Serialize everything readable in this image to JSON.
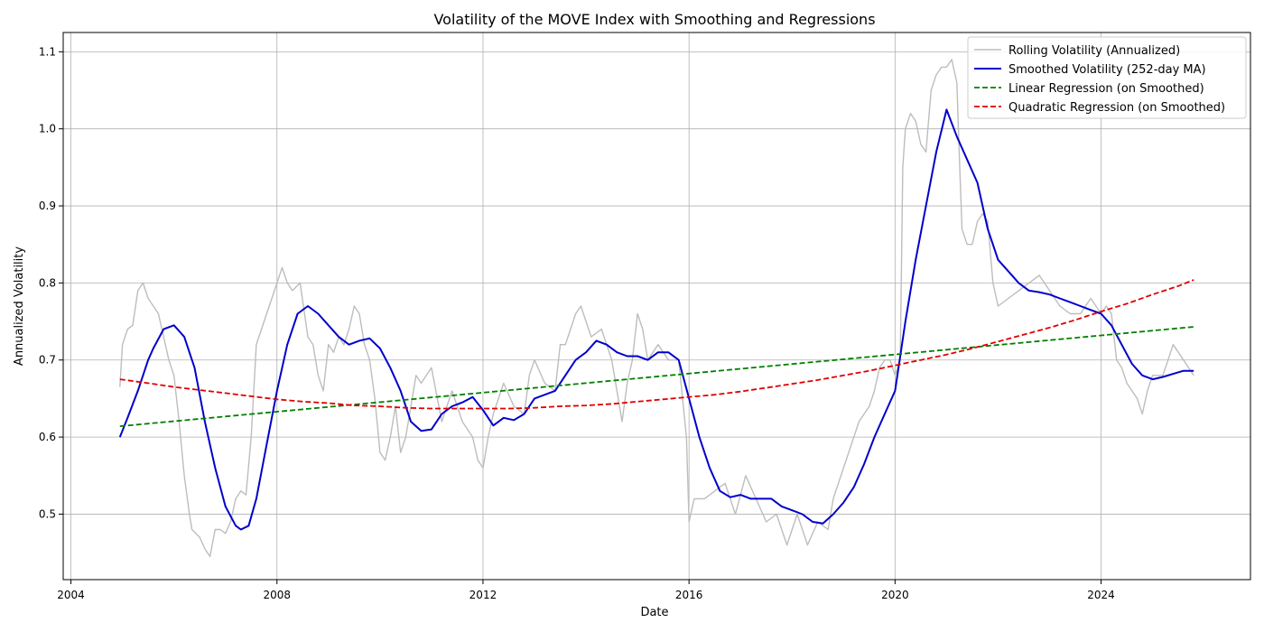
{
  "chart_data": {
    "type": "line",
    "title": "Volatility of the MOVE Index with Smoothing and Regressions",
    "xlabel": "Date",
    "ylabel": "Annualized Volatility",
    "xlim": [
      2003.85,
      2026.9
    ],
    "ylim": [
      0.415,
      1.125
    ],
    "grid": true,
    "legend_position": "top-right",
    "x_ticks": [
      2004,
      2008,
      2012,
      2016,
      2020,
      2024
    ],
    "x_tick_labels": [
      "2004",
      "2008",
      "2012",
      "2016",
      "2020",
      "2024"
    ],
    "y_ticks": [
      0.5,
      0.6,
      0.7,
      0.8,
      0.9,
      1.0,
      1.1
    ],
    "y_tick_labels": [
      "0.5",
      "0.6",
      "0.7",
      "0.8",
      "0.9",
      "1.0",
      "1.1"
    ],
    "series": [
      {
        "name": "Rolling Volatility (Annualized)",
        "color": "#bdbdbd",
        "style": "solid",
        "x": [
          2004.95,
          2005.0,
          2005.1,
          2005.2,
          2005.3,
          2005.4,
          2005.5,
          2005.6,
          2005.7,
          2005.8,
          2005.9,
          2006.0,
          2006.1,
          2006.2,
          2006.3,
          2006.35,
          2006.5,
          2006.6,
          2006.7,
          2006.8,
          2006.9,
          2007.0,
          2007.1,
          2007.2,
          2007.3,
          2007.4,
          2007.5,
          2007.6,
          2007.7,
          2007.8,
          2007.9,
          2008.0,
          2008.1,
          2008.2,
          2008.3,
          2008.45,
          2008.6,
          2008.7,
          2008.8,
          2008.9,
          2009.0,
          2009.1,
          2009.2,
          2009.3,
          2009.4,
          2009.5,
          2009.6,
          2009.7,
          2009.8,
          2009.9,
          2010.0,
          2010.1,
          2010.2,
          2010.3,
          2010.4,
          2010.5,
          2010.6,
          2010.7,
          2010.8,
          2010.9,
          2011.0,
          2011.2,
          2011.4,
          2011.5,
          2011.6,
          2011.8,
          2011.9,
          2012.0,
          2012.1,
          2012.2,
          2012.4,
          2012.6,
          2012.8,
          2012.9,
          2013.0,
          2013.2,
          2013.4,
          2013.5,
          2013.6,
          2013.7,
          2013.8,
          2013.9,
          2014.0,
          2014.1,
          2014.3,
          2014.5,
          2014.6,
          2014.7,
          2014.8,
          2014.9,
          2015.0,
          2015.1,
          2015.2,
          2015.4,
          2015.6,
          2015.8,
          2015.95,
          2016.0,
          2016.1,
          2016.3,
          2016.5,
          2016.7,
          2016.9,
          2017.1,
          2017.3,
          2017.5,
          2017.7,
          2017.9,
          2018.1,
          2018.3,
          2018.5,
          2018.7,
          2018.8,
          2018.9,
          2019.0,
          2019.1,
          2019.2,
          2019.3,
          2019.4,
          2019.5,
          2019.6,
          2019.7,
          2019.8,
          2019.9,
          2020.0,
          2020.1,
          2020.15,
          2020.2,
          2020.3,
          2020.4,
          2020.5,
          2020.6,
          2020.7,
          2020.8,
          2020.9,
          2021.0,
          2021.1,
          2021.2,
          2021.25,
          2021.3,
          2021.4,
          2021.5,
          2021.6,
          2021.7,
          2021.8,
          2021.9,
          2022.0,
          2022.2,
          2022.4,
          2022.6,
          2022.8,
          2023.0,
          2023.2,
          2023.4,
          2023.6,
          2023.8,
          2024.0,
          2024.1,
          2024.2,
          2024.3,
          2024.4,
          2024.5,
          2024.6,
          2024.7,
          2024.8,
          2024.9,
          2025.0,
          2025.2,
          2025.3,
          2025.4,
          2025.5,
          2025.6,
          2025.7,
          2025.8
        ],
        "values": [
          0.665,
          0.72,
          0.74,
          0.745,
          0.79,
          0.8,
          0.78,
          0.77,
          0.76,
          0.73,
          0.7,
          0.68,
          0.62,
          0.55,
          0.5,
          0.48,
          0.47,
          0.455,
          0.445,
          0.48,
          0.48,
          0.475,
          0.49,
          0.52,
          0.53,
          0.525,
          0.6,
          0.72,
          0.74,
          0.76,
          0.78,
          0.8,
          0.82,
          0.8,
          0.79,
          0.8,
          0.73,
          0.72,
          0.68,
          0.66,
          0.72,
          0.71,
          0.73,
          0.72,
          0.74,
          0.77,
          0.76,
          0.72,
          0.7,
          0.65,
          0.58,
          0.57,
          0.6,
          0.64,
          0.58,
          0.6,
          0.64,
          0.68,
          0.67,
          0.68,
          0.69,
          0.62,
          0.66,
          0.64,
          0.62,
          0.6,
          0.57,
          0.56,
          0.6,
          0.63,
          0.67,
          0.64,
          0.63,
          0.68,
          0.7,
          0.67,
          0.66,
          0.72,
          0.72,
          0.74,
          0.76,
          0.77,
          0.75,
          0.73,
          0.74,
          0.7,
          0.66,
          0.62,
          0.67,
          0.7,
          0.76,
          0.74,
          0.7,
          0.72,
          0.7,
          0.7,
          0.6,
          0.49,
          0.52,
          0.52,
          0.53,
          0.54,
          0.5,
          0.55,
          0.52,
          0.49,
          0.5,
          0.46,
          0.5,
          0.46,
          0.49,
          0.48,
          0.52,
          0.54,
          0.56,
          0.58,
          0.6,
          0.62,
          0.63,
          0.64,
          0.66,
          0.69,
          0.7,
          0.7,
          0.68,
          0.7,
          0.95,
          1.0,
          1.02,
          1.01,
          0.98,
          0.97,
          1.05,
          1.07,
          1.08,
          1.08,
          1.09,
          1.06,
          0.96,
          0.87,
          0.85,
          0.85,
          0.88,
          0.89,
          0.88,
          0.8,
          0.77,
          0.78,
          0.79,
          0.8,
          0.81,
          0.79,
          0.77,
          0.76,
          0.76,
          0.78,
          0.76,
          0.77,
          0.76,
          0.7,
          0.69,
          0.67,
          0.66,
          0.65,
          0.63,
          0.66,
          0.68,
          0.68,
          0.7,
          0.72,
          0.71,
          0.7,
          0.69,
          0.68
        ]
      },
      {
        "name": "Smoothed Volatility (252-day MA)",
        "color": "#0000cc",
        "style": "solid",
        "x": [
          2004.95,
          2005.1,
          2005.3,
          2005.5,
          2005.6,
          2005.8,
          2006.0,
          2006.2,
          2006.4,
          2006.6,
          2006.8,
          2007.0,
          2007.2,
          2007.3,
          2007.45,
          2007.6,
          2007.8,
          2008.0,
          2008.2,
          2008.4,
          2008.6,
          2008.8,
          2009.0,
          2009.2,
          2009.4,
          2009.6,
          2009.8,
          2010.0,
          2010.2,
          2010.4,
          2010.6,
          2010.8,
          2011.0,
          2011.2,
          2011.4,
          2011.6,
          2011.8,
          2012.0,
          2012.2,
          2012.4,
          2012.6,
          2012.8,
          2013.0,
          2013.2,
          2013.4,
          2013.6,
          2013.8,
          2014.0,
          2014.2,
          2014.4,
          2014.6,
          2014.8,
          2015.0,
          2015.2,
          2015.4,
          2015.6,
          2015.8,
          2016.0,
          2016.2,
          2016.4,
          2016.6,
          2016.8,
          2017.0,
          2017.2,
          2017.4,
          2017.6,
          2017.8,
          2018.0,
          2018.2,
          2018.4,
          2018.6,
          2018.8,
          2019.0,
          2019.2,
          2019.4,
          2019.6,
          2019.8,
          2020.0,
          2020.2,
          2020.4,
          2020.6,
          2020.8,
          2021.0,
          2021.2,
          2021.4,
          2021.6,
          2021.8,
          2022.0,
          2022.2,
          2022.4,
          2022.6,
          2022.8,
          2023.0,
          2023.2,
          2023.4,
          2023.6,
          2023.8,
          2024.0,
          2024.2,
          2024.4,
          2024.6,
          2024.8,
          2025.0,
          2025.2,
          2025.4,
          2025.6,
          2025.8
        ],
        "values": [
          0.6,
          0.625,
          0.66,
          0.7,
          0.715,
          0.74,
          0.745,
          0.73,
          0.69,
          0.62,
          0.56,
          0.51,
          0.485,
          0.48,
          0.485,
          0.52,
          0.59,
          0.66,
          0.72,
          0.76,
          0.77,
          0.76,
          0.745,
          0.73,
          0.72,
          0.725,
          0.728,
          0.715,
          0.69,
          0.66,
          0.62,
          0.608,
          0.61,
          0.63,
          0.64,
          0.645,
          0.652,
          0.635,
          0.615,
          0.625,
          0.622,
          0.63,
          0.65,
          0.655,
          0.66,
          0.68,
          0.7,
          0.71,
          0.725,
          0.72,
          0.71,
          0.705,
          0.705,
          0.7,
          0.71,
          0.71,
          0.7,
          0.65,
          0.6,
          0.56,
          0.53,
          0.522,
          0.525,
          0.52,
          0.52,
          0.52,
          0.51,
          0.505,
          0.5,
          0.49,
          0.488,
          0.5,
          0.515,
          0.535,
          0.565,
          0.6,
          0.63,
          0.66,
          0.75,
          0.83,
          0.9,
          0.97,
          1.025,
          0.99,
          0.96,
          0.93,
          0.87,
          0.83,
          0.815,
          0.8,
          0.79,
          0.788,
          0.785,
          0.78,
          0.775,
          0.77,
          0.765,
          0.76,
          0.745,
          0.72,
          0.695,
          0.68,
          0.675,
          0.678,
          0.682,
          0.686,
          0.686
        ]
      },
      {
        "name": "Linear Regression (on Smoothed)",
        "color": "#008000",
        "style": "dashed",
        "x": [
          2004.95,
          2025.8
        ],
        "values": [
          0.614,
          0.743
        ]
      },
      {
        "name": "Quadratic Regression (on Smoothed)",
        "color": "#e00000",
        "style": "dashed",
        "x": [
          2004.95,
          2005.5,
          2006.0,
          2006.5,
          2007.0,
          2007.5,
          2008.0,
          2008.5,
          2009.0,
          2009.5,
          2010.0,
          2010.5,
          2011.0,
          2011.5,
          2012.0,
          2012.5,
          2013.0,
          2013.5,
          2014.0,
          2014.5,
          2015.0,
          2015.5,
          2016.0,
          2016.5,
          2017.0,
          2017.5,
          2018.0,
          2018.5,
          2019.0,
          2019.5,
          2020.0,
          2020.5,
          2021.0,
          2021.5,
          2022.0,
          2022.5,
          2023.0,
          2023.5,
          2024.0,
          2024.5,
          2025.0,
          2025.5,
          2025.8
        ],
        "values": [
          0.675,
          0.67,
          0.665,
          0.661,
          0.657,
          0.653,
          0.649,
          0.646,
          0.644,
          0.641,
          0.64,
          0.638,
          0.637,
          0.637,
          0.637,
          0.637,
          0.638,
          0.64,
          0.641,
          0.643,
          0.646,
          0.649,
          0.652,
          0.655,
          0.659,
          0.664,
          0.669,
          0.674,
          0.68,
          0.686,
          0.693,
          0.7,
          0.707,
          0.715,
          0.724,
          0.733,
          0.742,
          0.752,
          0.763,
          0.773,
          0.785,
          0.796,
          0.804
        ]
      }
    ]
  }
}
